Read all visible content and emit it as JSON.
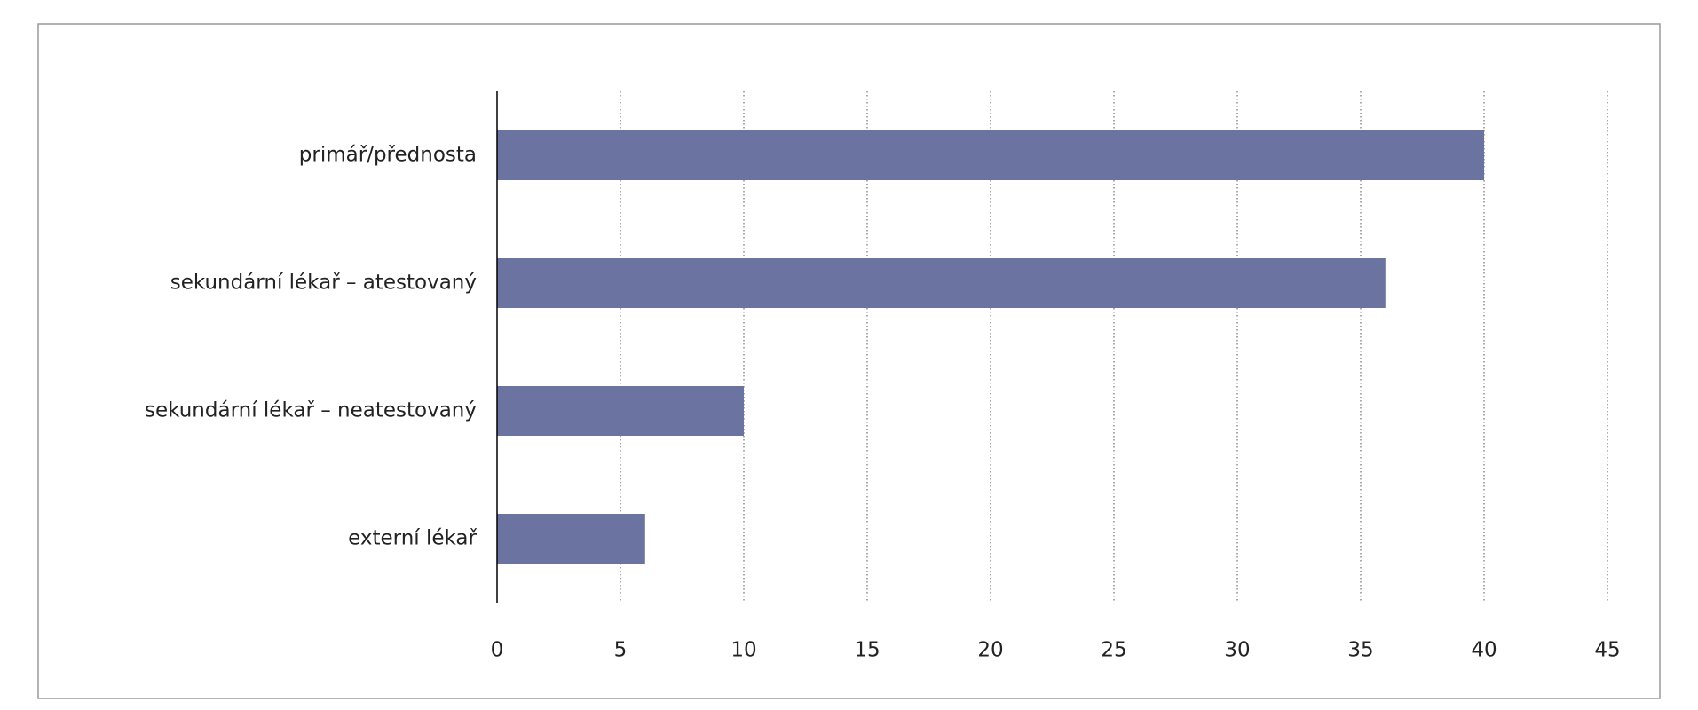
{
  "chart_data": {
    "type": "bar",
    "orientation": "horizontal",
    "categories": [
      "primář/přednosta",
      "sekundární lékař – atestovaný",
      "sekundární lékař – neatestovaný",
      "externí lékař"
    ],
    "values": [
      40,
      36,
      10,
      6
    ],
    "color": "#6b74a0",
    "xlim": [
      0,
      45
    ],
    "xticks": [
      0,
      5,
      10,
      15,
      20,
      25,
      30,
      35,
      40,
      45
    ],
    "grid": true
  }
}
